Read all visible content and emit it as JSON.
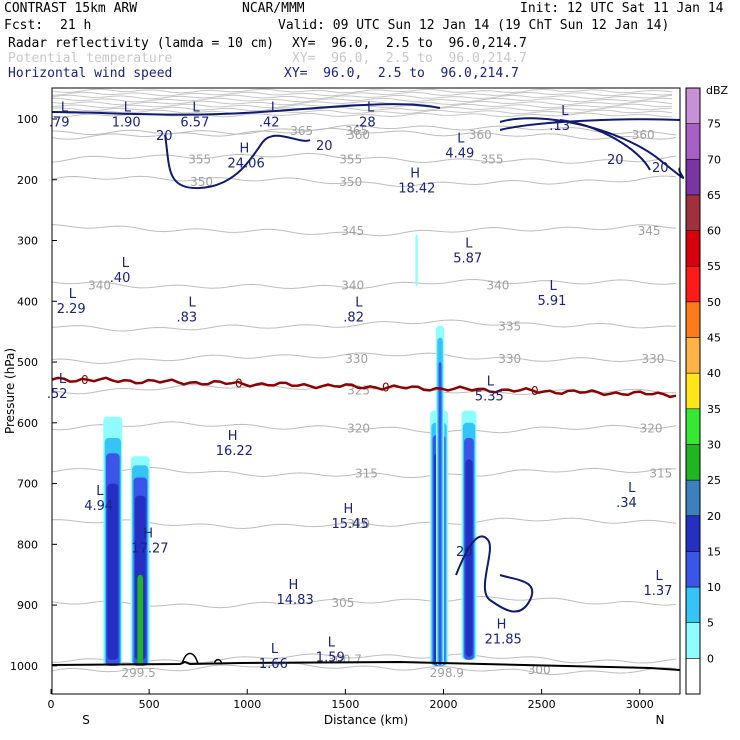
{
  "header": {
    "model": "CONTRAST 15km ARW",
    "source": "NCAR/MMM",
    "init": "Init: 12 UTC Sat 11 Jan 14",
    "fcst_label": "Fcst:",
    "fcst_value": "21 h",
    "valid": "Valid: 09 UTC Sun 12 Jan 14 (19 ChT Sun 12 Jan 14)",
    "field1_name": "Radar reflectivity (lamda = 10 cm)",
    "field1_xy": "XY=  96.0,  2.5 to  96.0,214.7",
    "field2_name": "Potential temperature",
    "field2_xy": "XY=  96.0,  2.5 to  96.0,214.7",
    "field3_name": "Horizontal wind speed",
    "field3_xy": "XY=  96.0,  2.5 to  96.0,214.7",
    "colors": {
      "field1": "#000000",
      "field2": "#c8c8c8",
      "field3": "#1a237e"
    }
  },
  "chart_data": {
    "type": "heatmap",
    "xlabel": "Distance (km)",
    "ylabel": "Pressure (hPa)",
    "xlim": [
      0,
      3200
    ],
    "ylim": [
      1050,
      60
    ],
    "x_ticks": [
      0,
      500,
      1000,
      1500,
      2000,
      2500,
      3000
    ],
    "y_ticks": [
      100,
      200,
      300,
      400,
      500,
      600,
      700,
      800,
      900,
      1000
    ],
    "x_end_labels": {
      "left": "S",
      "right": "N"
    },
    "colorbar": {
      "unit": "dBZ",
      "levels": [
        0,
        5,
        10,
        15,
        20,
        25,
        30,
        35,
        40,
        45,
        50,
        55,
        60,
        65,
        70,
        75
      ],
      "colors": [
        "#ffffff",
        "#8ffcff",
        "#36c3f6",
        "#3a55e8",
        "#2430c2",
        "#3d7fbf",
        "#22b522",
        "#34e834",
        "#ffe61a",
        "#ffb347",
        "#ff7a1a",
        "#ff1a1a",
        "#d9000d",
        "#a0303c",
        "#7b35a3",
        "#a960c4",
        "#c890d6"
      ]
    },
    "theta_contours": [
      {
        "label": "365",
        "p": 118,
        "labels_at": [
          1270,
          1550
        ]
      },
      {
        "label": "360",
        "p": 125,
        "labels_at": [
          1560,
          2180,
          3010
        ]
      },
      {
        "label": "355",
        "p": 165,
        "labels_at": [
          750,
          1520,
          2240
        ]
      },
      {
        "label": "350",
        "p": 202,
        "labels_at": [
          760,
          1520
        ]
      },
      {
        "label": "345",
        "p": 283,
        "labels_at": [
          1530,
          3040
        ]
      },
      {
        "label": "340",
        "p": 372,
        "labels_at": [
          240,
          1530,
          2270
        ]
      },
      {
        "label": "335",
        "p": 440,
        "labels_at": [
          2330
        ]
      },
      {
        "label": "330",
        "p": 493,
        "labels_at": [
          1550,
          2330,
          3060
        ]
      },
      {
        "label": "325",
        "p": 545,
        "labels_at": [
          1560
        ]
      },
      {
        "label": "320",
        "p": 608,
        "labels_at": [
          1560,
          3050
        ]
      },
      {
        "label": "315",
        "p": 682,
        "labels_at": [
          1600,
          3100
        ]
      },
      {
        "label": "310",
        "p": 765,
        "labels_at": [
          1560
        ]
      },
      {
        "label": "305",
        "p": 895,
        "labels_at": [
          1480
        ]
      },
      {
        "label": "300.7",
        "p": 988,
        "labels_at": [
          1460
        ]
      },
      {
        "label": "300",
        "p": 1005,
        "labels_at": [
          2480
        ]
      },
      {
        "label": "298.9",
        "p": 1010,
        "labels_at": [
          1980
        ]
      },
      {
        "label": "299.5",
        "p": 1010,
        "labels_at": [
          410
        ]
      }
    ],
    "wind_labels": [
      {
        "t": "L",
        "v": ".79",
        "x": 30,
        "p": 104
      },
      {
        "t": "L",
        "v": "1.90",
        "x": 350,
        "p": 104
      },
      {
        "t": "L",
        "v": "6.57",
        "x": 700,
        "p": 104
      },
      {
        "t": "L",
        "v": ".42",
        "x": 1100,
        "p": 104
      },
      {
        "t": "L",
        "v": ".28",
        "x": 1590,
        "p": 104
      },
      {
        "t": "L",
        "v": ".13",
        "x": 2580,
        "p": 110
      },
      {
        "t": "H",
        "v": "24.06",
        "x": 940,
        "p": 172
      },
      {
        "t": "L",
        "v": "4.49",
        "x": 2050,
        "p": 155
      },
      {
        "t": "H",
        "v": "18.42",
        "x": 1810,
        "p": 213
      },
      {
        "t": "L",
        "v": ".40",
        "x": 340,
        "p": 360
      },
      {
        "t": "L",
        "v": "5.87",
        "x": 2090,
        "p": 328
      },
      {
        "t": "L",
        "v": "5.91",
        "x": 2520,
        "p": 398
      },
      {
        "t": "L",
        "v": "2.29",
        "x": 70,
        "p": 411
      },
      {
        "t": "L",
        "v": ".83",
        "x": 680,
        "p": 425
      },
      {
        "t": "L",
        "v": ".82",
        "x": 1530,
        "p": 425
      },
      {
        "t": "L",
        "v": ".52",
        "x": 20,
        "p": 551
      },
      {
        "t": "L",
        "v": "5.35",
        "x": 2200,
        "p": 555
      },
      {
        "t": "H",
        "v": "16.22",
        "x": 880,
        "p": 645
      },
      {
        "t": "L",
        "v": ".34",
        "x": 2920,
        "p": 730
      },
      {
        "t": "L",
        "v": "4.94",
        "x": 210,
        "p": 735
      },
      {
        "t": "H",
        "v": "15.45",
        "x": 1470,
        "p": 765
      },
      {
        "t": "H",
        "v": "17.27",
        "x": 450,
        "p": 805
      },
      {
        "t": "H",
        "v": "14.83",
        "x": 1190,
        "p": 890
      },
      {
        "t": "L",
        "v": "1.37",
        "x": 3060,
        "p": 875
      },
      {
        "t": "H",
        "v": "21.85",
        "x": 2250,
        "p": 955
      },
      {
        "t": "L",
        "v": "1.66",
        "x": 1100,
        "p": 995
      },
      {
        "t": "L",
        "v": "1.59",
        "x": 1390,
        "p": 985
      }
    ],
    "wind_20_labels": [
      "20",
      "20",
      "20",
      "20",
      "20"
    ],
    "zero_line_labels": [
      "0",
      "0",
      "0",
      "0",
      "0",
      "0"
    ]
  }
}
